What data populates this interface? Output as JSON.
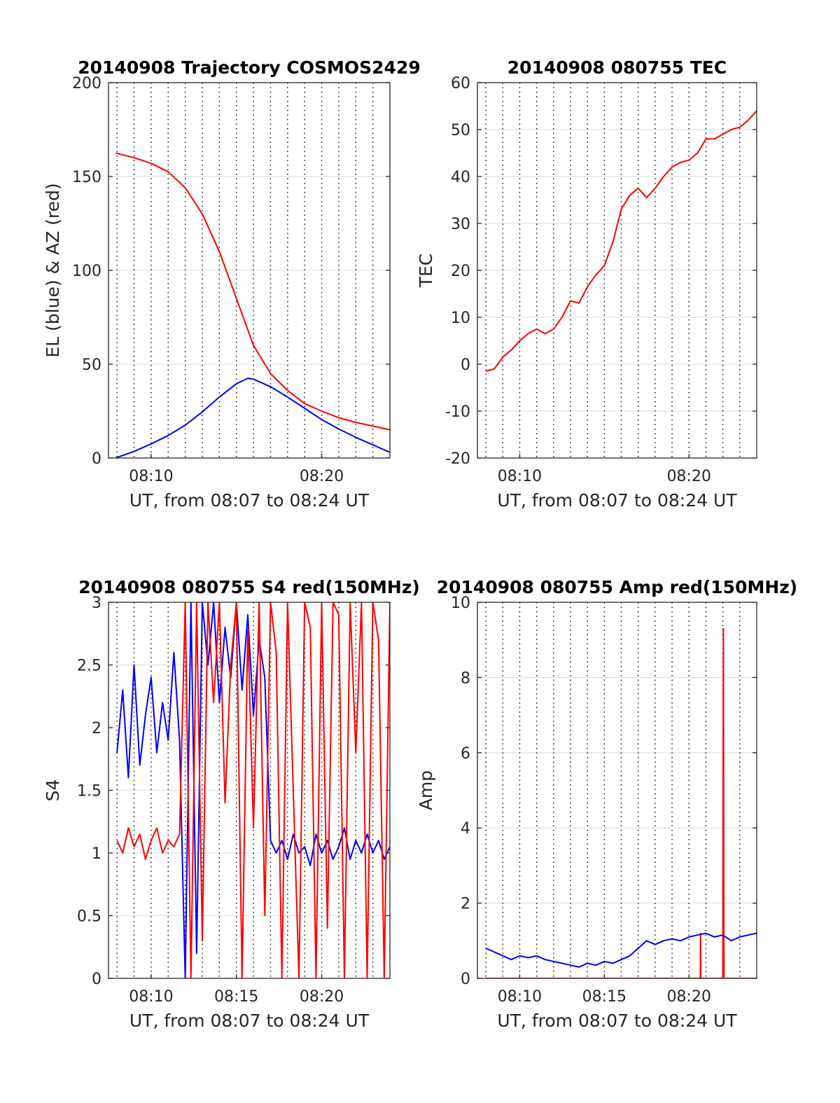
{
  "chart_data": [
    {
      "type": "line",
      "title": "20140908 Trajectory COSMOS2429",
      "xlabel": "UT, from 08:07 to 08:24 UT",
      "ylabel": "EL (blue) & AZ (red)",
      "xlim": [
        "08:07:30",
        "08:24:00"
      ],
      "ylim": [
        0,
        200
      ],
      "yticks": [
        "0",
        "50",
        "100",
        "150",
        "200"
      ],
      "xticks": [
        {
          "t": "08:10",
          "label": "08:10"
        },
        {
          "t": "08:20",
          "label": "08:20"
        }
      ],
      "vgrid_times": [
        "08:08",
        "08:09",
        "08:10",
        "08:11",
        "08:12",
        "08:13",
        "08:14",
        "08:15",
        "08:16",
        "08:17",
        "08:18",
        "08:19",
        "08:20",
        "08:21",
        "08:22",
        "08:23"
      ],
      "series": [
        {
          "color": "#ff0000",
          "x": [
            "08:07:55",
            "08:09:00",
            "08:10:00",
            "08:11:00",
            "08:12:00",
            "08:13:00",
            "08:14:00",
            "08:15:00",
            "08:16:00",
            "08:17:00",
            "08:18:00",
            "08:19:00",
            "08:20:00",
            "08:21:00",
            "08:22:00",
            "08:23:00",
            "08:24:00"
          ],
          "values": [
            162.5,
            160,
            157,
            152.5,
            144,
            130,
            110,
            85,
            60,
            45,
            36,
            29,
            25,
            21.5,
            19,
            17,
            15
          ]
        },
        {
          "color": "#0000ff",
          "x": [
            "08:07:55",
            "08:09:00",
            "08:10:00",
            "08:11:00",
            "08:12:00",
            "08:13:00",
            "08:14:00",
            "08:15:00",
            "08:15:40",
            "08:16:00",
            "08:17:00",
            "08:18:00",
            "08:19:00",
            "08:20:00",
            "08:21:00",
            "08:22:00",
            "08:23:00",
            "08:24:00"
          ],
          "values": [
            0,
            3.5,
            7.5,
            12,
            17.5,
            24.5,
            32.5,
            39.5,
            42.5,
            42,
            38,
            32.5,
            26.5,
            20.5,
            15.5,
            11,
            7,
            3
          ]
        }
      ]
    },
    {
      "type": "line",
      "title": "20140908 080755 TEC",
      "xlabel": "UT, from 08:07 to 08:24 UT",
      "ylabel": "TEC",
      "xlim": [
        "08:07:30",
        "08:24:00"
      ],
      "ylim": [
        -20,
        60
      ],
      "yticks": [
        "-20",
        "-10",
        "0",
        "10",
        "20",
        "30",
        "40",
        "50",
        "60"
      ],
      "xticks": [
        {
          "t": "08:10",
          "label": "08:10"
        },
        {
          "t": "08:20",
          "label": "08:20"
        }
      ],
      "vgrid_times": [
        "08:08",
        "08:09",
        "08:10",
        "08:11",
        "08:12",
        "08:13",
        "08:14",
        "08:15",
        "08:16",
        "08:17",
        "08:18",
        "08:19",
        "08:20",
        "08:21",
        "08:22",
        "08:23"
      ],
      "series": [
        {
          "color": "#ff0000",
          "x": [
            "08:08:00",
            "08:08:30",
            "08:09:00",
            "08:09:30",
            "08:10:00",
            "08:10:30",
            "08:11:00",
            "08:11:30",
            "08:12:00",
            "08:12:30",
            "08:13:00",
            "08:13:30",
            "08:14:00",
            "08:14:30",
            "08:15:00",
            "08:15:30",
            "08:16:00",
            "08:16:30",
            "08:17:00",
            "08:17:30",
            "08:18:00",
            "08:18:30",
            "08:19:00",
            "08:19:30",
            "08:20:00",
            "08:20:30",
            "08:21:00",
            "08:21:30",
            "08:22:00",
            "08:22:30",
            "08:23:00",
            "08:23:30",
            "08:24:00"
          ],
          "values": [
            -1.5,
            -1,
            1.5,
            3,
            5,
            6.5,
            7.5,
            6.5,
            7.5,
            10,
            13.5,
            13,
            16.5,
            19,
            21,
            26,
            33,
            36,
            37.5,
            35.5,
            37.5,
            40,
            42,
            43,
            43.5,
            45,
            48,
            48,
            49,
            50,
            50.5,
            52,
            54
          ]
        }
      ]
    },
    {
      "type": "line",
      "title": "20140908 080755 S4 red(150MHz)",
      "xlabel": "UT, from 08:07 to 08:24 UT",
      "ylabel": "S4",
      "xlim": [
        "08:07:30",
        "08:24:00"
      ],
      "ylim": [
        0,
        3
      ],
      "yticks": [
        "0",
        "0.5",
        "1",
        "1.5",
        "2",
        "2.5",
        "3"
      ],
      "xticks": [
        {
          "t": "08:10",
          "label": "08:10"
        },
        {
          "t": "08:15",
          "label": "08:15"
        },
        {
          "t": "08:20",
          "label": "08:20"
        }
      ],
      "vgrid_times": [
        "08:08",
        "08:09",
        "08:10",
        "08:11",
        "08:12",
        "08:13",
        "08:14",
        "08:15",
        "08:16",
        "08:17",
        "08:18",
        "08:19",
        "08:20",
        "08:21",
        "08:22",
        "08:23"
      ],
      "series": [
        {
          "color": "#0000ff",
          "x": [
            "08:08:00",
            "08:08:20",
            "08:08:40",
            "08:09:00",
            "08:09:20",
            "08:09:40",
            "08:10:00",
            "08:10:20",
            "08:10:40",
            "08:11:00",
            "08:11:20",
            "08:11:40",
            "08:12:00",
            "08:12:20",
            "08:12:40",
            "08:13:00",
            "08:13:20",
            "08:13:40",
            "08:14:00",
            "08:14:20",
            "08:14:40",
            "08:15:00",
            "08:15:20",
            "08:15:40",
            "08:16:00",
            "08:16:20",
            "08:16:40",
            "08:17:00",
            "08:17:20",
            "08:17:40",
            "08:18:00",
            "08:18:20",
            "08:18:40",
            "08:19:00",
            "08:19:20",
            "08:19:40",
            "08:20:00",
            "08:20:20",
            "08:20:40",
            "08:21:00",
            "08:21:20",
            "08:21:40",
            "08:22:00",
            "08:22:20",
            "08:22:40",
            "08:23:00",
            "08:23:20",
            "08:23:40",
            "08:24:00"
          ],
          "values": [
            1.8,
            2.3,
            1.6,
            2.5,
            1.7,
            2.1,
            2.4,
            1.8,
            2.2,
            1.9,
            2.6,
            1.9,
            0,
            3,
            0.2,
            3,
            2.5,
            3,
            2.2,
            2.8,
            2.4,
            3,
            2.3,
            2.9,
            2.1,
            2.7,
            2.4,
            1.1,
            1.0,
            1.1,
            0.95,
            1.15,
            1.0,
            1.05,
            0.9,
            1.15,
            1.0,
            1.1,
            0.95,
            1.05,
            1.2,
            0.95,
            1.1,
            1.0,
            1.15,
            1.0,
            1.1,
            0.95,
            1.05
          ]
        },
        {
          "color": "#ff0000",
          "x": [
            "08:08:00",
            "08:08:20",
            "08:08:40",
            "08:09:00",
            "08:09:20",
            "08:09:40",
            "08:10:00",
            "08:10:20",
            "08:10:40",
            "08:11:00",
            "08:11:20",
            "08:11:40",
            "08:12:00",
            "08:12:20",
            "08:12:40",
            "08:13:00",
            "08:13:20",
            "08:13:40",
            "08:14:00",
            "08:14:20",
            "08:14:40",
            "08:15:00",
            "08:15:20",
            "08:15:40",
            "08:16:00",
            "08:16:20",
            "08:16:40",
            "08:17:00",
            "08:17:20",
            "08:17:40",
            "08:18:00",
            "08:18:20",
            "08:18:40",
            "08:19:00",
            "08:19:20",
            "08:19:40",
            "08:20:00",
            "08:20:20",
            "08:20:40",
            "08:21:00",
            "08:21:20",
            "08:21:40",
            "08:22:00",
            "08:22:20",
            "08:22:40",
            "08:23:00",
            "08:23:20",
            "08:23:40",
            "08:24:00"
          ],
          "values": [
            1.1,
            1.0,
            1.2,
            1.05,
            1.15,
            0.95,
            1.1,
            1.2,
            1.0,
            1.1,
            1.05,
            1.15,
            3,
            0,
            3,
            0.3,
            3,
            2.2,
            3,
            1.4,
            2.5,
            3,
            0,
            2.8,
            1.2,
            3,
            0.5,
            3,
            2.6,
            0,
            3,
            1.5,
            0,
            3,
            2.8,
            0,
            3,
            0.4,
            3,
            2.9,
            0,
            3,
            1.8,
            3,
            0,
            3,
            2.7,
            0,
            3
          ]
        }
      ]
    },
    {
      "type": "line",
      "title": "20140908 080755 Amp red(150MHz)",
      "xlabel": "UT, from 08:07 to 08:24 UT",
      "ylabel": "Amp",
      "xlim": [
        "08:07:30",
        "08:24:00"
      ],
      "ylim": [
        0,
        10
      ],
      "yticks": [
        "0",
        "2",
        "4",
        "6",
        "8",
        "10"
      ],
      "xticks": [
        {
          "t": "08:10",
          "label": "08:10"
        },
        {
          "t": "08:15",
          "label": "08:15"
        },
        {
          "t": "08:20",
          "label": "08:20"
        }
      ],
      "vgrid_times": [
        "08:08",
        "08:09",
        "08:10",
        "08:11",
        "08:12",
        "08:13",
        "08:14",
        "08:15",
        "08:16",
        "08:17",
        "08:18",
        "08:19",
        "08:20",
        "08:21",
        "08:22",
        "08:23"
      ],
      "series": [
        {
          "color": "#ff0000",
          "x": [
            "08:08:00",
            "08:13:25",
            "08:13:26",
            "08:13:27",
            "08:20:40",
            "08:20:41",
            "08:20:42",
            "08:22:00",
            "08:22:02",
            "08:22:04",
            "08:24:00"
          ],
          "values": [
            0,
            0,
            -0.15,
            0,
            0,
            1.2,
            0,
            0,
            9.3,
            0,
            0
          ]
        },
        {
          "color": "#0000ff",
          "x": [
            "08:08:00",
            "08:08:30",
            "08:09:00",
            "08:09:30",
            "08:10:00",
            "08:10:30",
            "08:11:00",
            "08:11:30",
            "08:12:00",
            "08:12:30",
            "08:13:00",
            "08:13:30",
            "08:14:00",
            "08:14:30",
            "08:15:00",
            "08:15:30",
            "08:16:00",
            "08:16:30",
            "08:17:00",
            "08:17:30",
            "08:18:00",
            "08:18:30",
            "08:19:00",
            "08:19:30",
            "08:20:00",
            "08:20:30",
            "08:21:00",
            "08:21:30",
            "08:22:00",
            "08:22:30",
            "08:23:00",
            "08:23:30",
            "08:24:00"
          ],
          "values": [
            0.8,
            0.7,
            0.6,
            0.5,
            0.6,
            0.55,
            0.6,
            0.5,
            0.45,
            0.4,
            0.35,
            0.3,
            0.4,
            0.35,
            0.45,
            0.4,
            0.5,
            0.6,
            0.8,
            1.0,
            0.9,
            1.0,
            1.05,
            1.0,
            1.1,
            1.15,
            1.2,
            1.1,
            1.15,
            1.0,
            1.1,
            1.15,
            1.2
          ]
        }
      ]
    }
  ]
}
